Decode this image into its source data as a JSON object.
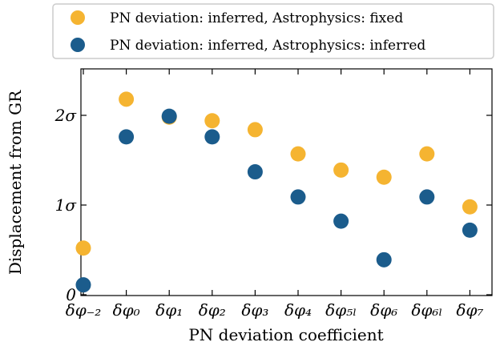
{
  "chart_data": {
    "type": "scatter",
    "title": "",
    "xlabel": "PN deviation coefficient",
    "ylabel": "Displacement from GR",
    "categories": [
      "δφ₋₂",
      "δφ₀",
      "δφ₁",
      "δφ₂",
      "δφ₃",
      "δφ₄",
      "δφ₅ₗ",
      "δφ₆",
      "δφ₆ₗ",
      "δφ₇"
    ],
    "yticks": [
      {
        "value": 0,
        "label": "0"
      },
      {
        "value": 1,
        "label": "1σ"
      },
      {
        "value": 2,
        "label": "2σ"
      }
    ],
    "ylim": [
      0,
      2.5
    ],
    "legend_position": "top",
    "grid": false,
    "series": [
      {
        "name": "PN deviation: inferred, Astrophysics: fixed",
        "color": "#f5b431",
        "values": [
          0.52,
          2.18,
          1.98,
          1.94,
          1.84,
          1.57,
          1.39,
          1.31,
          1.57,
          0.98
        ]
      },
      {
        "name": "PN deviation: inferred, Astrophysics: inferred",
        "color": "#1b5c8c",
        "values": [
          0.11,
          1.76,
          1.99,
          1.76,
          1.37,
          1.09,
          0.82,
          0.39,
          1.09,
          0.72
        ]
      }
    ]
  }
}
